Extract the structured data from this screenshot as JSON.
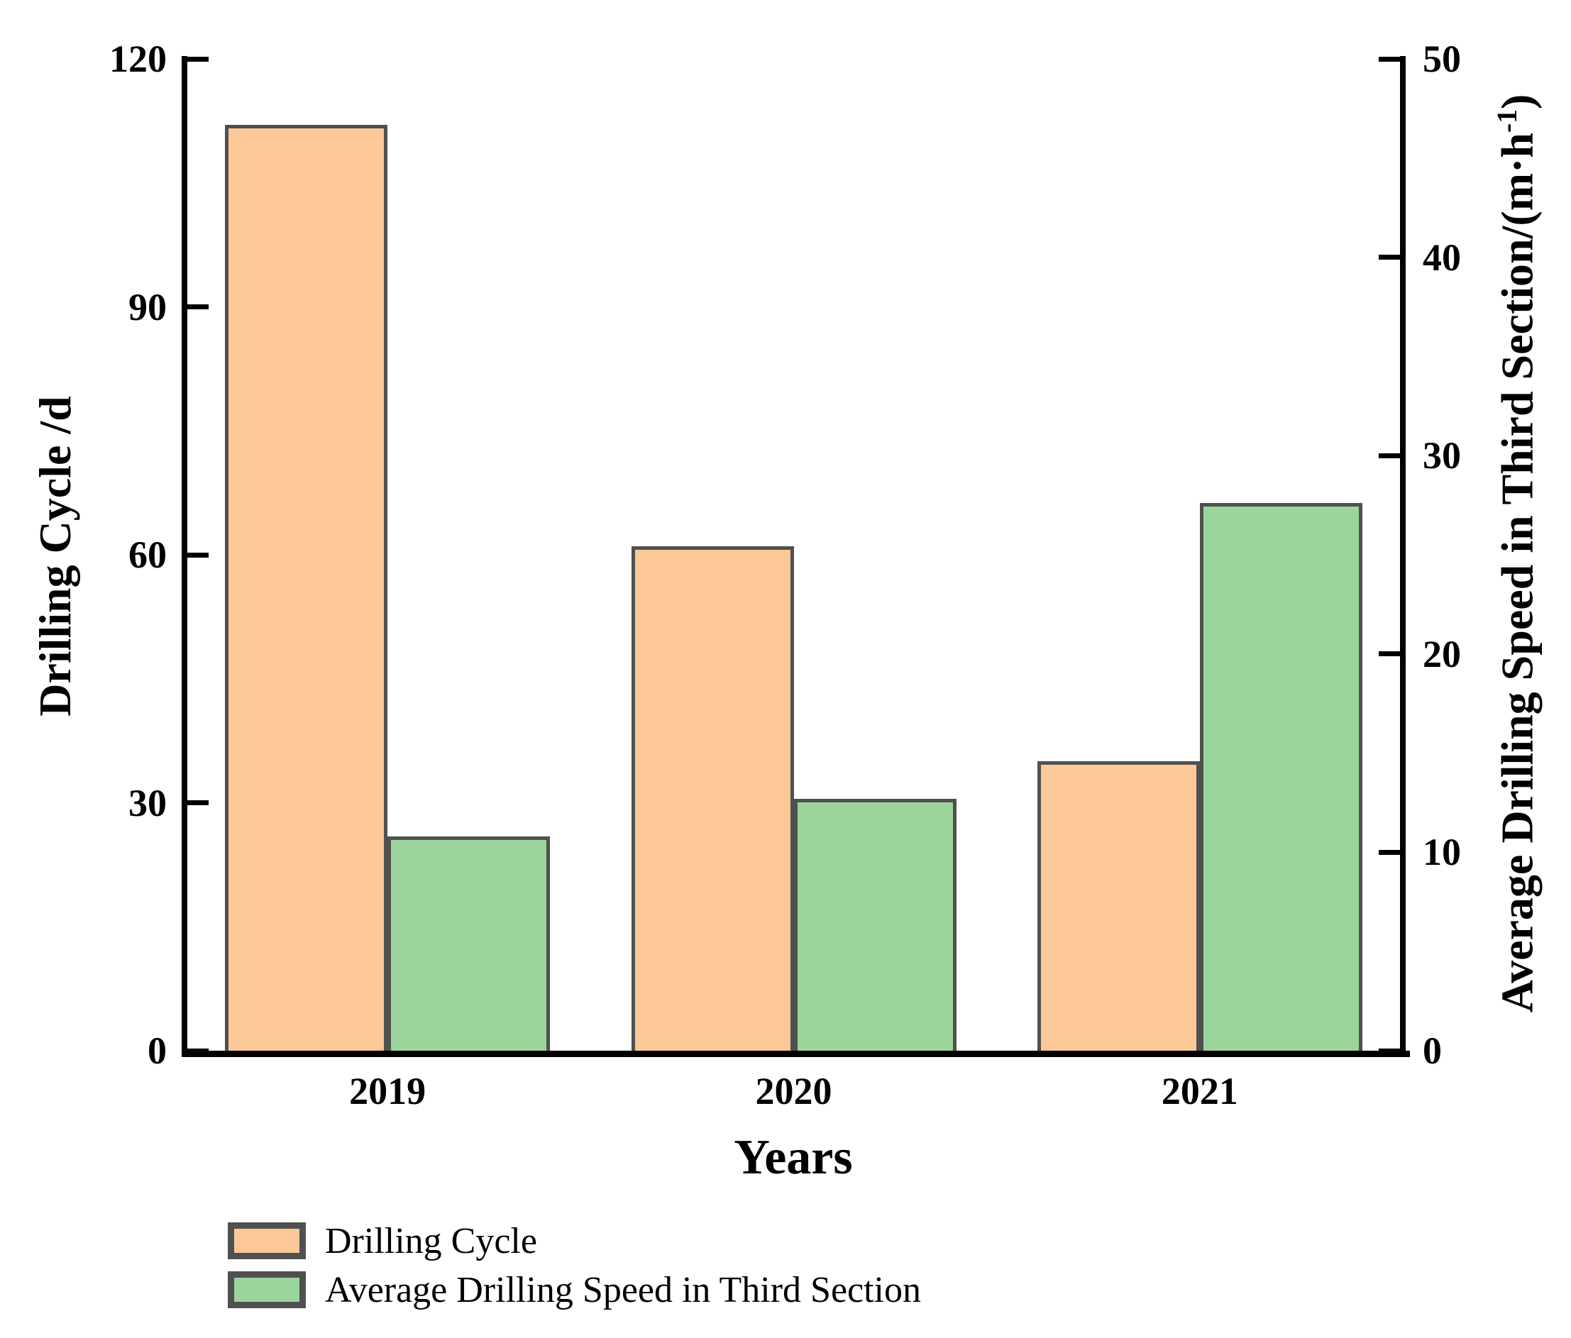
{
  "chart_data": {
    "type": "bar",
    "title": "",
    "categories": [
      "2019",
      "2020",
      "2021"
    ],
    "series": [
      {
        "name": "Drilling Cycle",
        "slug": "drilling-cycle",
        "axis": "left",
        "unit": "d",
        "color": "#FCC897",
        "edge_color": "#505050",
        "values": [
          112,
          61,
          35
        ]
      },
      {
        "name": "Average Drilling Speed in Third Section",
        "slug": "avg-drilling-speed",
        "axis": "right",
        "unit": "m·h⁻¹",
        "color": "#9CD59C",
        "edge_color": "#505050",
        "values": [
          10.8,
          12.7,
          27.6
        ]
      }
    ],
    "xlabel": "Years",
    "ylabel_left": "Drilling Cycle /d",
    "ylabel_right_pre": "Average Drilling Speed in Third Section/(m·h",
    "ylabel_right_sup": "-1",
    "ylabel_right_post": ")",
    "axes": {
      "left": {
        "min": 0,
        "max": 120,
        "ticks": [
          0,
          30,
          60,
          90,
          120
        ]
      },
      "right": {
        "min": 0,
        "max": 50,
        "ticks": [
          0,
          10,
          20,
          30,
          40,
          50
        ]
      }
    },
    "legend": {
      "position": "bottom-left",
      "entries": [
        {
          "label": "Drilling Cycle",
          "color": "#FCC897"
        },
        {
          "label": "Average Drilling Speed in Third Section",
          "color": "#9CD59C"
        }
      ]
    },
    "grid": false,
    "spine_color": "#000000"
  }
}
